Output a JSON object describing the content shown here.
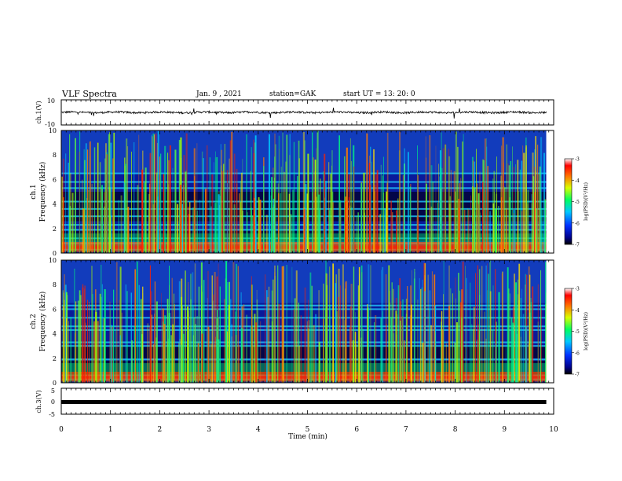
{
  "header": {
    "title": "VLF Spectra",
    "date": "Jan. 9 , 2021",
    "station": "station=GAK",
    "start": "start UT =  13: 20: 0"
  },
  "chart_data": [
    {
      "type": "line",
      "ylabel": "ch.1(V)",
      "ylim": [
        -10,
        10
      ],
      "ytick_labels": [
        "10",
        "-10"
      ],
      "xlim": [
        0,
        10
      ],
      "baseline": 0,
      "line_color": "#000000"
    },
    {
      "type": "heatmap",
      "ylabel": "ch.1\nFrequency (kHz)",
      "ylabel_lines": [
        "ch.1",
        "Frequency (kHz)"
      ],
      "ylim": [
        0,
        10
      ],
      "ytick_labels": [
        "0",
        "2",
        "4",
        "6",
        "8",
        "10"
      ],
      "xlim": [
        0,
        10
      ],
      "data_end_min": 9.85,
      "colorbar": {
        "label": "log(PSD)(V²/Hz)",
        "range": [
          -7,
          -3
        ],
        "tick_labels": [
          "-3",
          "-4",
          "-5",
          "-6",
          "-7"
        ]
      },
      "bands_khz": [
        0.3,
        0.8,
        1.2,
        1.9,
        2.3,
        3.0,
        3.6,
        4.2,
        5.3,
        5.8,
        6.5
      ],
      "dark_regions_khz": [
        [
          1.0,
          1.8
        ],
        [
          2.6,
          5.0
        ]
      ]
    },
    {
      "type": "heatmap",
      "ylabel": "ch.2\nFrequency (kHz)",
      "ylabel_lines": [
        "ch.2",
        "Frequency (kHz)"
      ],
      "ylim": [
        0,
        10
      ],
      "ytick_labels": [
        "0",
        "2",
        "4",
        "6",
        "8",
        "10"
      ],
      "xlim": [
        0,
        10
      ],
      "data_end_min": 9.85,
      "colorbar": {
        "label": "log(PSD)(V²/Hz)",
        "range": [
          -7,
          -3
        ],
        "tick_labels": [
          "-3",
          "-4",
          "-5",
          "-6",
          "-7"
        ]
      },
      "bands_khz": [
        0.3,
        0.6,
        1.9,
        3.0,
        3.3,
        4.3,
        4.6,
        5.3,
        6.0,
        6.3
      ],
      "dark_regions_khz": [
        [
          0.6,
          1.8
        ],
        [
          2.0,
          3.0
        ]
      ]
    },
    {
      "type": "line",
      "ylabel": "ch.3(V)",
      "ylim": [
        -5,
        5
      ],
      "ytick_labels": [
        "5",
        "0",
        "-5"
      ],
      "xlim": [
        0,
        10
      ],
      "values": [
        0,
        0
      ],
      "x": [
        0,
        9.85
      ],
      "line_color": "#000000",
      "xlabel": "Time (min)",
      "xtick_labels": [
        "0",
        "1",
        "2",
        "3",
        "4",
        "5",
        "6",
        "7",
        "8",
        "9",
        "10"
      ]
    }
  ]
}
